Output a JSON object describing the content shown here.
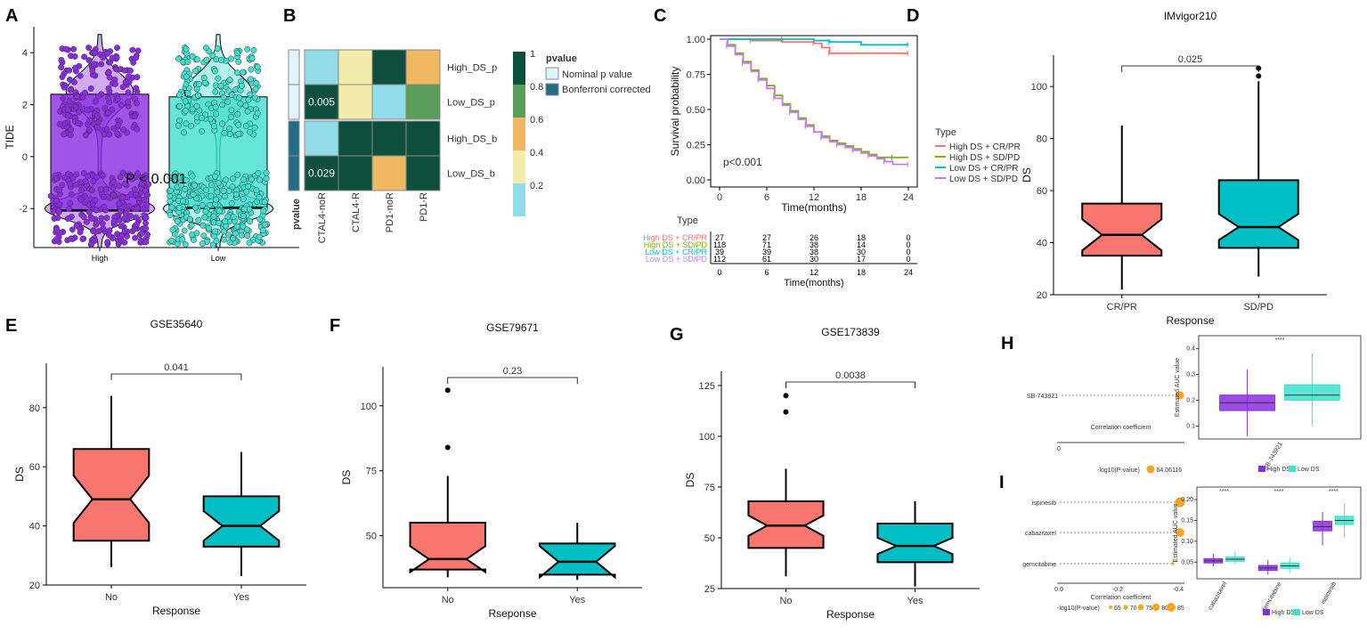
{
  "panel_labels": [
    "A",
    "B",
    "C",
    "D",
    "E",
    "F",
    "G",
    "H",
    "I"
  ],
  "colors": {
    "high_purple": "#8a2be2",
    "low_cyan": "#40e0d0",
    "box_red": "#f8766d",
    "box_teal": "#00bfc4",
    "km_red": "#f8766d",
    "km_green": "#7cae00",
    "km_cyan": "#00bfc4",
    "km_violet": "#c77cff",
    "heat_darkgreen": "#0d4f3c",
    "heat_green": "#5a9e5a",
    "heat_orange": "#f0b860",
    "heat_lightyellow": "#f2ebaa",
    "heat_lightblue": "#92dcea",
    "dot_orange": "#f5a623"
  },
  "chart_data": [
    {
      "id": "A",
      "type": "violin-box",
      "ylabel": "TIDE",
      "categories": [
        "High",
        "Low"
      ],
      "ylim": [
        -3.5,
        5
      ],
      "yticks": [
        -2,
        0,
        2,
        4
      ],
      "boxes": [
        {
          "q1": -2.1,
          "median": -2.05,
          "q3": 2.4
        },
        {
          "q1": -2.0,
          "median": -1.95,
          "q3": 2.3
        }
      ],
      "annotation": "P < 0.001"
    },
    {
      "id": "B",
      "type": "heatmap",
      "rows": [
        "High_DS_p",
        "Low_DS_p",
        "High_DS_b",
        "Low_DS_b"
      ],
      "cols": [
        "CTAL4-noR",
        "CTAL4-R",
        "PD1-noR",
        "PD1-R"
      ],
      "values": [
        [
          0.12,
          0.32,
          0.95,
          0.5
        ],
        [
          0.95,
          0.32,
          0.12,
          0.7
        ],
        [
          0.12,
          0.95,
          0.95,
          0.95
        ],
        [
          0.95,
          0.95,
          0.5,
          0.95
        ]
      ],
      "cell_labels": [
        [
          "",
          "",
          "",
          ""
        ],
        [
          "0.005",
          "",
          "",
          ""
        ],
        [
          "",
          "",
          "",
          ""
        ],
        [
          "0.029",
          "",
          "",
          ""
        ]
      ],
      "row_annotation_title": "pvalue",
      "legend_title": "pvalue",
      "legend_items": [
        "Nominal p value",
        "Bonferroni corrected"
      ],
      "colorbar_ticks": [
        "1",
        "0.8",
        "0.6",
        "0.4",
        "0.2"
      ]
    },
    {
      "id": "C",
      "type": "line",
      "xlabel": "Time(months)",
      "ylabel": "Survival probability",
      "xticks": [
        0,
        6,
        12,
        18,
        24
      ],
      "yticks": [
        "0.00",
        "0.25",
        "0.50",
        "0.75",
        "1.00"
      ],
      "pvalue": "p<0.001",
      "legend_title": "Type",
      "series": [
        {
          "name": "High DS + CR/PR",
          "x": [
            0,
            4,
            8,
            12,
            13,
            14,
            18,
            24
          ],
          "y": [
            1.0,
            0.99,
            0.98,
            0.97,
            0.94,
            0.9,
            0.9,
            0.9
          ]
        },
        {
          "name": "High DS + SD/PD",
          "x": [
            0,
            1,
            2,
            3,
            4,
            5,
            6,
            7,
            8,
            9,
            10,
            11,
            12,
            13,
            14,
            15,
            16,
            17,
            18,
            19,
            20,
            22,
            24
          ],
          "y": [
            1.0,
            0.96,
            0.9,
            0.84,
            0.78,
            0.72,
            0.67,
            0.6,
            0.54,
            0.49,
            0.44,
            0.39,
            0.34,
            0.31,
            0.28,
            0.26,
            0.24,
            0.22,
            0.2,
            0.18,
            0.16,
            0.16,
            0.16
          ]
        },
        {
          "name": "Low DS + CR/PR",
          "x": [
            0,
            8,
            12,
            14,
            18,
            24
          ],
          "y": [
            1.0,
            1.0,
            0.99,
            0.98,
            0.96,
            0.96
          ]
        },
        {
          "name": "Low DS + SD/PD",
          "x": [
            0,
            1,
            2,
            3,
            4,
            5,
            6,
            7,
            8,
            9,
            10,
            11,
            12,
            13,
            14,
            15,
            16,
            17,
            18,
            19,
            20,
            21,
            22,
            24
          ],
          "y": [
            1.0,
            0.95,
            0.89,
            0.83,
            0.77,
            0.71,
            0.65,
            0.58,
            0.53,
            0.48,
            0.43,
            0.38,
            0.34,
            0.3,
            0.27,
            0.25,
            0.23,
            0.21,
            0.19,
            0.17,
            0.15,
            0.13,
            0.11,
            0.11
          ]
        }
      ],
      "risk_table": {
        "title": "Type",
        "xlabel": "Time(months)",
        "rows": [
          {
            "name": "High DS + CR/PR",
            "values": [
              "27",
              "27",
              "26",
              "18",
              "0"
            ]
          },
          {
            "name": "High DS + SD/PD",
            "values": [
              "118",
              "71",
              "38",
              "14",
              "0"
            ]
          },
          {
            "name": "Low  DS + CR/PR",
            "values": [
              "39",
              "39",
              "38",
              "30",
              "0"
            ]
          },
          {
            "name": "Low DS + SD/PD",
            "values": [
              "112",
              "61",
              "30",
              "17",
              "0"
            ]
          }
        ]
      }
    },
    {
      "id": "D",
      "type": "box",
      "title": "IMvigor210",
      "xlabel": "Response",
      "ylabel": "DS",
      "categories": [
        "CR/PR",
        "SD/PD"
      ],
      "ylim": [
        20,
        112
      ],
      "yticks": [
        20,
        40,
        60,
        80,
        100
      ],
      "boxes": [
        {
          "whisker_low": 22,
          "q1": 35,
          "median": 43,
          "q3": 55,
          "whisker_high": 85,
          "notch": 6,
          "outliers": []
        },
        {
          "whisker_low": 27,
          "q1": 38,
          "median": 46,
          "q3": 64,
          "whisker_high": 102,
          "notch": 5,
          "outliers": [
            104,
            107
          ]
        }
      ],
      "pvalue": "0.025"
    },
    {
      "id": "E",
      "type": "box",
      "title": "GSE35640",
      "xlabel": "Response",
      "ylabel": "DS",
      "categories": [
        "No",
        "Yes"
      ],
      "ylim": [
        20,
        95
      ],
      "yticks": [
        20,
        40,
        60,
        80
      ],
      "boxes": [
        {
          "whisker_low": 26,
          "q1": 35,
          "median": 49,
          "q3": 66,
          "whisker_high": 84,
          "notch": 8,
          "outliers": []
        },
        {
          "whisker_low": 23,
          "q1": 33,
          "median": 40,
          "q3": 50,
          "whisker_high": 65,
          "notch": 5,
          "outliers": []
        }
      ],
      "pvalue": "0.041"
    },
    {
      "id": "F",
      "type": "box",
      "title": "GSE79671",
      "xlabel": "Rseponse",
      "ylabel": "DS",
      "categories": [
        "No",
        "Yes"
      ],
      "ylim": [
        30,
        115
      ],
      "yticks": [
        50,
        75,
        100
      ],
      "boxes": [
        {
          "whisker_low": 34,
          "q1": 37,
          "median": 41,
          "q3": 55,
          "whisker_high": 73,
          "notch": 5,
          "outliers": [
            84,
            106
          ]
        },
        {
          "whisker_low": 33,
          "q1": 35,
          "median": 40,
          "q3": 47,
          "whisker_high": 55,
          "notch": 6,
          "outliers": []
        }
      ],
      "pvalue": "0.23"
    },
    {
      "id": "G",
      "type": "box",
      "title": "GSE173839",
      "xlabel": "Response",
      "ylabel": "DS",
      "categories": [
        "No",
        "Yes"
      ],
      "ylim": [
        25,
        132
      ],
      "yticks": [
        25,
        50,
        75,
        100,
        125
      ],
      "boxes": [
        {
          "whisker_low": 31,
          "q1": 45,
          "median": 56,
          "q3": 68,
          "whisker_high": 84,
          "notch": 5,
          "outliers": [
            112,
            120
          ]
        },
        {
          "whisker_low": 26,
          "q1": 38,
          "median": 46,
          "q3": 57,
          "whisker_high": 68,
          "notch": 4,
          "outliers": []
        }
      ],
      "pvalue": "0.0038"
    },
    {
      "id": "H",
      "type": "scatter",
      "drugs": [
        "SB-743921"
      ],
      "correlation": [
        -0.42
      ],
      "dot_sizes": [
        64.06116
      ],
      "xlabel": "Correlation coefficient",
      "xticks": [
        "0"
      ],
      "size_legend_title": "-log10(P-value)",
      "size_legend_values": [
        "64.06116"
      ],
      "box": {
        "ylabel": "Estimated AUC value",
        "yticks": [
          "0.1",
          "0.2",
          "0.3",
          "0.4"
        ],
        "ylim": [
          0.05,
          0.45
        ],
        "categories": [
          "SB-743921"
        ],
        "groups": [
          "High DS",
          "Low DS"
        ],
        "sig": "****",
        "boxes": [
          {
            "group": "High DS",
            "whisker_low": 0.06,
            "q1": 0.16,
            "median": 0.19,
            "q3": 0.22,
            "whisker_high": 0.32
          },
          {
            "group": "Low DS",
            "whisker_low": 0.1,
            "q1": 0.2,
            "median": 0.22,
            "q3": 0.26,
            "whisker_high": 0.38
          }
        ]
      }
    },
    {
      "id": "I",
      "type": "scatter",
      "drugs": [
        "ispinesib",
        "cabazitaxel",
        "gemcitabine"
      ],
      "correlation": [
        -0.42,
        -0.42,
        -0.4
      ],
      "dot_sizes": [
        85,
        80,
        65
      ],
      "xlabel": "Correlation coefficient",
      "xticks": [
        "0.0",
        "-0.2",
        "-0.4"
      ],
      "size_legend_title": "-log10(P-value)",
      "size_legend_values": [
        "65",
        "70",
        "75",
        "80",
        "85"
      ],
      "box": {
        "ylabel": "Estimated AUC value",
        "yticks": [
          "0.05",
          "0.10",
          "0.15",
          "0.20"
        ],
        "ylim": [
          0.01,
          0.23
        ],
        "categories": [
          "cabazitaxel",
          "gemcitabine",
          "ispinesib"
        ],
        "groups": [
          "High DS",
          "Low DS"
        ],
        "sig": [
          "****",
          "****",
          "****"
        ],
        "boxes": [
          {
            "cat": 0,
            "group": "High DS",
            "whisker_low": 0.04,
            "q1": 0.048,
            "median": 0.053,
            "q3": 0.058,
            "whisker_high": 0.07
          },
          {
            "cat": 0,
            "group": "Low DS",
            "whisker_low": 0.045,
            "q1": 0.052,
            "median": 0.057,
            "q3": 0.062,
            "whisker_high": 0.075
          },
          {
            "cat": 1,
            "group": "High DS",
            "whisker_low": 0.02,
            "q1": 0.03,
            "median": 0.036,
            "q3": 0.042,
            "whisker_high": 0.055
          },
          {
            "cat": 1,
            "group": "Low DS",
            "whisker_low": 0.025,
            "q1": 0.035,
            "median": 0.041,
            "q3": 0.048,
            "whisker_high": 0.06
          },
          {
            "cat": 2,
            "group": "High DS",
            "whisker_low": 0.09,
            "q1": 0.125,
            "median": 0.135,
            "q3": 0.148,
            "whisker_high": 0.17
          },
          {
            "cat": 2,
            "group": "Low DS",
            "whisker_low": 0.11,
            "q1": 0.14,
            "median": 0.15,
            "q3": 0.16,
            "whisker_high": 0.19
          }
        ]
      }
    }
  ]
}
